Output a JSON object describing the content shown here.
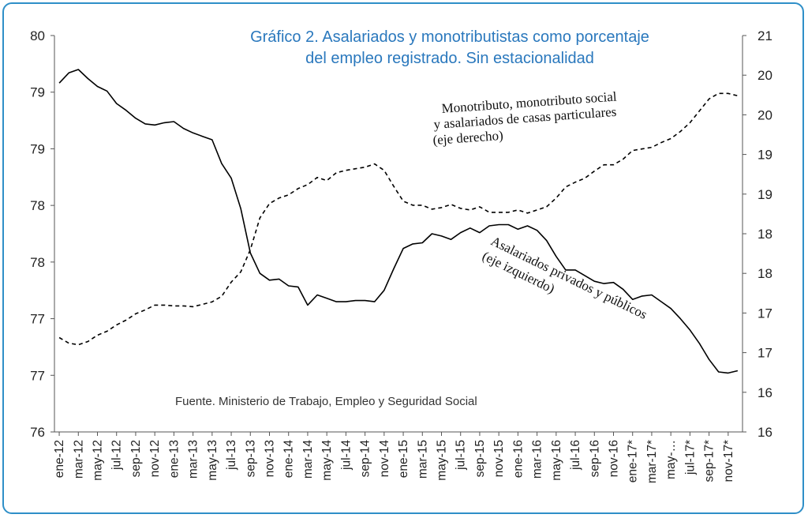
{
  "title_line1": "Gráfico 2. Asalariados y monotributistas como porcentaje",
  "title_line2": "del empleo registrado. Sin estacionalidad",
  "annotation_right": [
    "Monotributo, monotributo social",
    "y asalariados de casas particulares",
    "(eje derecho)"
  ],
  "annotation_left": [
    "Asalariados privados y públicos",
    "(eje izquierdo)"
  ],
  "source": "Fuente. Ministerio de Trabajo, Empleo y Seguridad Social",
  "chart_data": {
    "type": "line",
    "x": [
      "ene-12",
      "feb-12",
      "mar-12",
      "abr-12",
      "may-12",
      "jun-12",
      "jul-12",
      "ago-12",
      "sep-12",
      "oct-12",
      "nov-12",
      "dic-12",
      "ene-13",
      "feb-13",
      "mar-13",
      "abr-13",
      "may-13",
      "jun-13",
      "jul-13",
      "ago-13",
      "sep-13",
      "oct-13",
      "nov-13",
      "dic-13",
      "ene-14",
      "feb-14",
      "mar-14",
      "abr-14",
      "may-14",
      "jun-14",
      "jul-14",
      "ago-14",
      "sep-14",
      "oct-14",
      "nov-14",
      "dic-14",
      "ene-15",
      "feb-15",
      "mar-15",
      "abr-15",
      "may-15",
      "jun-15",
      "jul-15",
      "ago-15",
      "sep-15",
      "oct-15",
      "nov-15",
      "dic-15",
      "ene-16",
      "feb-16",
      "mar-16",
      "abr-16",
      "may-16",
      "jun-16",
      "jul-16",
      "ago-16",
      "sep-16",
      "oct-16",
      "nov-16",
      "dic-16",
      "ene-17*",
      "feb-17*",
      "mar-17*",
      "abr-17*",
      "may-17*",
      "jun-17*",
      "jul-17*",
      "ago-17*",
      "sep-17*",
      "oct-17*",
      "nov-17*",
      "dic-17*"
    ],
    "x_tick_labels": [
      "ene-12",
      "mar-12",
      "may-12",
      "jul-12",
      "sep-12",
      "nov-12",
      "ene-13",
      "mar-13",
      "may-13",
      "jul-13",
      "sep-13",
      "nov-13",
      "ene-14",
      "mar-14",
      "may-14",
      "jul-14",
      "sep-14",
      "nov-14",
      "ene-15",
      "mar-15",
      "may-15",
      "jul-15",
      "sep-15",
      "nov-15",
      "ene-16",
      "mar-16",
      "may-16",
      "jul-16",
      "sep-16",
      "nov-16",
      "ene-17*",
      "mar-17*",
      "may-…",
      "jul-17*",
      "sep-17*",
      "nov-17*"
    ],
    "y_left_tick_labels": [
      "80",
      "79",
      "79",
      "78",
      "78",
      "77",
      "77",
      "76"
    ],
    "y_right_tick_labels": [
      "21",
      "20",
      "20",
      "19",
      "19",
      "18",
      "18",
      "17",
      "17",
      "16",
      "16"
    ],
    "y_left_range": [
      76,
      79.5
    ],
    "y_right_range": [
      16,
      21
    ],
    "series": [
      {
        "name": "Asalariados privados y públicos",
        "axis": "left",
        "style": "solid",
        "values": [
          79.08,
          79.17,
          79.2,
          79.12,
          79.05,
          79.01,
          78.9,
          78.84,
          78.77,
          78.72,
          78.71,
          78.73,
          78.74,
          78.68,
          78.64,
          78.61,
          78.58,
          78.37,
          78.24,
          77.97,
          77.58,
          77.4,
          77.34,
          77.35,
          77.29,
          77.28,
          77.12,
          77.21,
          77.18,
          77.15,
          77.15,
          77.16,
          77.16,
          77.15,
          77.25,
          77.44,
          77.62,
          77.66,
          77.67,
          77.75,
          77.73,
          77.7,
          77.76,
          77.8,
          77.76,
          77.82,
          77.83,
          77.83,
          77.79,
          77.82,
          77.78,
          77.69,
          77.55,
          77.43,
          77.43,
          77.38,
          77.33,
          77.31,
          77.32,
          77.26,
          77.17,
          77.2,
          77.21,
          77.15,
          77.09,
          77.0,
          76.9,
          76.78,
          76.64,
          76.53,
          76.52,
          76.54
        ]
      },
      {
        "name": "Monotributo, monotributo social y asalariados de casas particulares",
        "axis": "right",
        "style": "dashed",
        "values": [
          17.19,
          17.12,
          17.1,
          17.14,
          17.22,
          17.27,
          17.35,
          17.41,
          17.49,
          17.54,
          17.6,
          17.6,
          17.59,
          17.59,
          17.58,
          17.61,
          17.64,
          17.71,
          17.89,
          18.02,
          18.3,
          18.7,
          18.88,
          18.95,
          18.99,
          19.07,
          19.12,
          19.21,
          19.17,
          19.27,
          19.3,
          19.32,
          19.34,
          19.38,
          19.3,
          19.1,
          18.91,
          18.86,
          18.86,
          18.81,
          18.83,
          18.87,
          18.82,
          18.8,
          18.84,
          18.77,
          18.77,
          18.77,
          18.8,
          18.76,
          18.8,
          18.84,
          18.95,
          19.09,
          19.15,
          19.2,
          19.29,
          19.37,
          19.37,
          19.44,
          19.55,
          19.57,
          19.59,
          19.65,
          19.7,
          19.79,
          19.9,
          20.05,
          20.2,
          20.27,
          20.27,
          20.24
        ]
      }
    ]
  }
}
